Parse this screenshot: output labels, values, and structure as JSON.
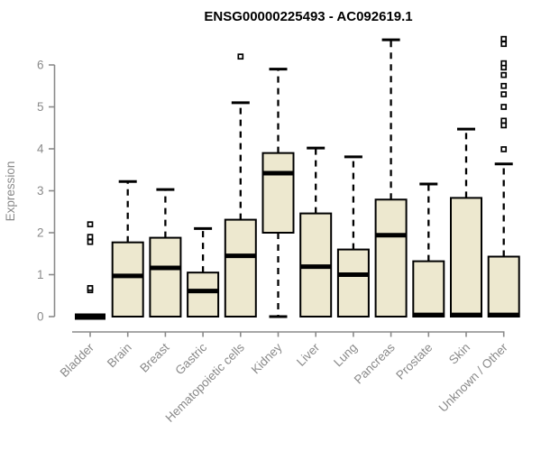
{
  "title": "ENSG00000225493 - AC092619.1",
  "colors": {
    "background": "#ffffff",
    "box_fill": "#ede8cf",
    "box_stroke": "#000000",
    "median": "#000000",
    "whisker": "#000000",
    "axis_line": "#8a8a8a",
    "axis_text": "#8a8a8a",
    "title_text": "#000000"
  },
  "chart_data": {
    "type": "boxplot",
    "title": "ENSG00000225493 - AC092619.1",
    "xlabel": "",
    "ylabel": "Expression",
    "ylim": [
      0,
      6.7
    ],
    "yticks": [
      0,
      1,
      2,
      3,
      4,
      5,
      6
    ],
    "grid": false,
    "legend": null,
    "x_tick_rotation_deg": 45,
    "categories": [
      "Bladder",
      "Brain",
      "Breast",
      "Gastric",
      "Hematopoietic cells",
      "Kidney",
      "Liver",
      "Lung",
      "Pancreas",
      "Prostate",
      "Skin",
      "Unknown / Other"
    ],
    "series": [
      {
        "name": "Bladder",
        "q1": 0,
        "median": 0,
        "q3": 0,
        "whisker_low": 0,
        "whisker_high": 0,
        "outliers": [
          0.63,
          0.68,
          1.78,
          1.9,
          2.2
        ]
      },
      {
        "name": "Brain",
        "q1": 0,
        "median": 0.97,
        "q3": 1.77,
        "whisker_low": 0,
        "whisker_high": 3.22,
        "outliers": []
      },
      {
        "name": "Breast",
        "q1": 0,
        "median": 1.16,
        "q3": 1.88,
        "whisker_low": 0,
        "whisker_high": 3.03,
        "outliers": []
      },
      {
        "name": "Gastric",
        "q1": 0,
        "median": 0.61,
        "q3": 1.05,
        "whisker_low": 0,
        "whisker_high": 2.1,
        "outliers": []
      },
      {
        "name": "Hematopoietic cells",
        "q1": 0,
        "median": 1.45,
        "q3": 2.31,
        "whisker_low": 0,
        "whisker_high": 5.1,
        "outliers": [
          6.2
        ]
      },
      {
        "name": "Kidney",
        "q1": 2.0,
        "median": 3.42,
        "q3": 3.9,
        "whisker_low": 0,
        "whisker_high": 5.9,
        "outliers": []
      },
      {
        "name": "Liver",
        "q1": 0,
        "median": 1.19,
        "q3": 2.46,
        "whisker_low": 0,
        "whisker_high": 4.02,
        "outliers": []
      },
      {
        "name": "Lung",
        "q1": 0,
        "median": 1.0,
        "q3": 1.6,
        "whisker_low": 0,
        "whisker_high": 3.81,
        "outliers": []
      },
      {
        "name": "Pancreas",
        "q1": 0,
        "median": 1.94,
        "q3": 2.79,
        "whisker_low": 0,
        "whisker_high": 6.6,
        "outliers": []
      },
      {
        "name": "Prostate",
        "q1": 0,
        "median": 0.04,
        "q3": 1.32,
        "whisker_low": 0,
        "whisker_high": 3.16,
        "outliers": []
      },
      {
        "name": "Skin",
        "q1": 0,
        "median": 0.04,
        "q3": 2.83,
        "whisker_low": 0,
        "whisker_high": 4.47,
        "outliers": []
      },
      {
        "name": "Unknown / Other",
        "q1": 0,
        "median": 0.04,
        "q3": 1.43,
        "whisker_low": 0,
        "whisker_high": 3.64,
        "outliers": [
          3.99,
          4.56,
          4.67,
          5.0,
          5.3,
          5.5,
          5.76,
          5.94,
          6.04,
          6.5,
          6.62
        ]
      }
    ]
  }
}
